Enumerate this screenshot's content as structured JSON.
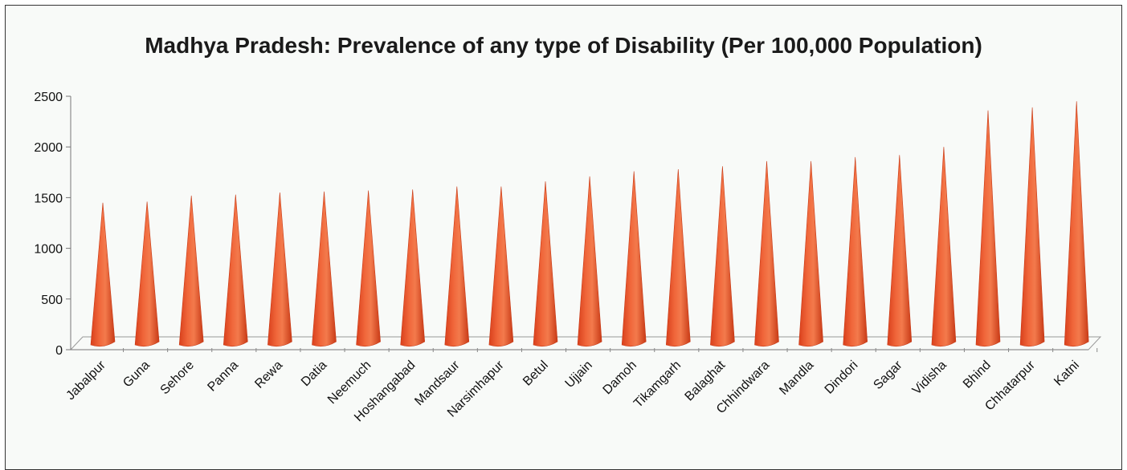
{
  "chart_data": {
    "type": "bar",
    "title": "Madhya Pradesh: Prevalence of any type of Disability (Per 100,000 Population)",
    "xlabel": "",
    "ylabel": "",
    "ylim": [
      0,
      2500
    ],
    "yticks": [
      "0",
      "500",
      "1000",
      "1500",
      "2000",
      "2500"
    ],
    "grid": false,
    "bar_color": "#ee5a2c",
    "categories": [
      "Jabalpur",
      "Guna",
      "Sehore",
      "Panna",
      "Rewa",
      "Datia",
      "Neemuch",
      "Hoshangabad",
      "Mandsaur",
      "Narsimhapur",
      "Betul",
      "Ujjain",
      "Damoh",
      "Tikamgarh",
      "Balaghat",
      "Chhindwara",
      "Mandla",
      "Dindori",
      "Sagar",
      "Vidisha",
      "Bhind",
      "Chhatarpur",
      "Katni"
    ],
    "values": [
      1450,
      1460,
      1520,
      1530,
      1550,
      1560,
      1570,
      1580,
      1610,
      1610,
      1660,
      1710,
      1760,
      1780,
      1810,
      1860,
      1860,
      1900,
      1920,
      2000,
      2360,
      2390,
      2450
    ]
  }
}
